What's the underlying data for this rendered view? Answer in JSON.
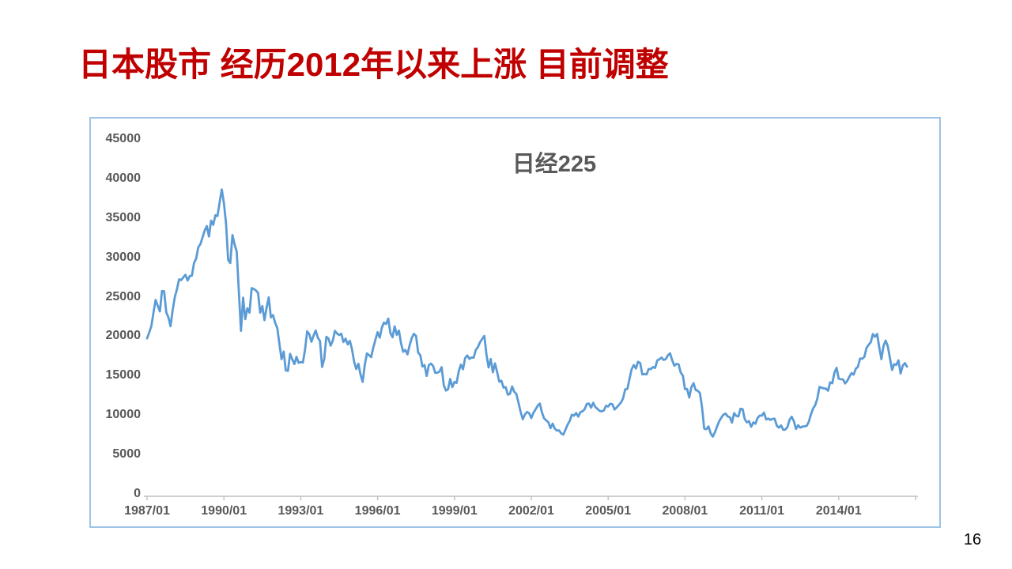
{
  "slide": {
    "title": "日本股市 经历2012年以来上涨 目前调整",
    "page_number": "16"
  },
  "colors": {
    "title_red": "#C00000",
    "chart_border": "#9DC3E6",
    "line_blue": "#5B9BD5",
    "axis_gray": "#BFBFBF",
    "label_gray": "#595959"
  },
  "chart_data": {
    "type": "line",
    "title": "日经225",
    "xlabel": "",
    "ylabel": "",
    "x_range": "1987/01 to 2016/09, monthly",
    "x_tick_labels": [
      "1987/01",
      "1990/01",
      "1993/01",
      "1996/01",
      "1999/01",
      "2002/01",
      "2005/01",
      "2008/01",
      "2011/01",
      "2014/01"
    ],
    "x_tick_interval_months": 36,
    "y_tick_labels": [
      "45000",
      "40000",
      "35000",
      "30000",
      "25000",
      "20000",
      "15000",
      "10000",
      "5000",
      "0"
    ],
    "ylim": [
      0,
      45000
    ],
    "grid": false,
    "legend": "none",
    "series": [
      {
        "name": "日经225",
        "values": [
          20024,
          20766,
          21567,
          23275,
          24902,
          24176,
          23455,
          26029,
          26010,
          23329,
          22687,
          21564,
          23622,
          25243,
          26260,
          27509,
          27417,
          27769,
          28094,
          27366,
          27923,
          27984,
          29579,
          30159,
          31581,
          31986,
          32839,
          33713,
          34267,
          32949,
          34954,
          34431,
          35637,
          35549,
          37269,
          38916,
          37189,
          34592,
          29980,
          29585,
          33131,
          31940,
          31036,
          25978,
          20984,
          25194,
          22455,
          23849,
          23293,
          26409,
          26292,
          26111,
          25790,
          23291,
          24121,
          22336,
          23916,
          25222,
          22687,
          22984,
          22023,
          21339,
          19346,
          17391,
          18348,
          15952,
          15910,
          18061,
          17399,
          16767,
          17684,
          16925,
          17024,
          16953,
          18591,
          20919,
          20552,
          19590,
          20380,
          21027,
          20106,
          19703,
          16406,
          17417,
          20229,
          19997,
          19112,
          19725,
          20974,
          20644,
          20449,
          20629,
          19564,
          19990,
          19260,
          19723,
          18650,
          17053,
          16140,
          16807,
          15437,
          14517,
          16677,
          18117,
          17913,
          17655,
          18880,
          19868,
          20813,
          20125,
          21407,
          22041,
          21846,
          22531,
          20693,
          20167,
          21556,
          20467,
          21020,
          19361,
          18330,
          18557,
          18003,
          19151,
          20069,
          20605,
          20331,
          18229,
          17888,
          16459,
          16636,
          15259,
          16628,
          16832,
          16527,
          15641,
          15671,
          15830,
          16379,
          14108,
          13406,
          13565,
          14884,
          13842,
          14499,
          14368,
          15837,
          16702,
          16112,
          17530,
          17861,
          17430,
          17605,
          17582,
          18558,
          18934,
          19540,
          19959,
          20337,
          17974,
          16332,
          17411,
          15727,
          16861,
          15747,
          14540,
          14649,
          13786,
          13844,
          12884,
          12999,
          13934,
          13262,
          12969,
          11861,
          10713,
          9775,
          10366,
          10697,
          10543,
          9919,
          10588,
          11025,
          11492,
          11764,
          10622,
          9878,
          9619,
          9383,
          8640,
          9216,
          8579,
          8339,
          8363,
          7973,
          7831,
          8425,
          9083,
          9563,
          10343,
          10219,
          10559,
          10100,
          10677,
          10784,
          11041,
          11715,
          11762,
          11236,
          11858,
          11326,
          11082,
          10824,
          10772,
          10899,
          11489,
          11387,
          11740,
          11669,
          11009,
          11276,
          11584,
          11900,
          12414,
          13574,
          13606,
          14872,
          16111,
          16649,
          16205,
          17060,
          16906,
          15467,
          15505,
          15457,
          16141,
          16128,
          16399,
          16274,
          17226,
          17383,
          17604,
          17288,
          17400,
          17876,
          18138,
          17249,
          16569,
          16786,
          16738,
          15681,
          15308,
          13592,
          13603,
          12526,
          13850,
          14339,
          13481,
          13377,
          13073,
          11260,
          8577,
          8512,
          8860,
          7994,
          7568,
          8110,
          8828,
          9523,
          9958,
          10357,
          10493,
          10133,
          10035,
          9346,
          10546,
          10198,
          10126,
          11090,
          11057,
          9769,
          9383,
          9537,
          8824,
          9369,
          9202,
          9937,
          10229,
          10237,
          10624,
          9755,
          9850,
          9694,
          9816,
          9833,
          8955,
          8700,
          8988,
          8435,
          8455,
          8803,
          9723,
          10084,
          9521,
          8543,
          9007,
          8695,
          8840,
          8870,
          8928,
          9446,
          10395,
          11139,
          11559,
          12398,
          13861,
          13775,
          13677,
          13668,
          13389,
          14456,
          14328,
          15662,
          16291,
          14915,
          14841,
          14828,
          14304,
          14632,
          15162,
          15621,
          15425,
          16174,
          16414,
          17460,
          17451,
          17674,
          18798,
          19207,
          19520,
          20563,
          20236,
          20585,
          18890,
          17388,
          19083,
          19747,
          19034,
          17518,
          16027,
          16759,
          16666,
          17235,
          15576,
          16569,
          16887,
          16450
        ]
      }
    ]
  }
}
